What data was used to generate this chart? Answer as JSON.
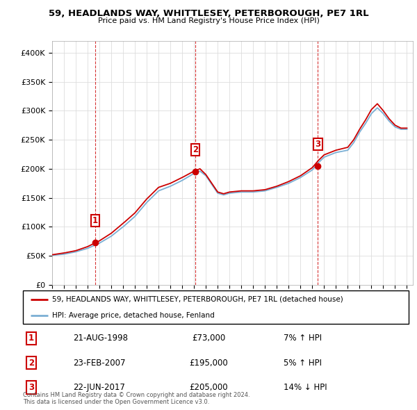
{
  "title_line1": "59, HEADLANDS WAY, WHITTLESEY, PETERBOROUGH, PE7 1RL",
  "title_line2": "Price paid vs. HM Land Registry's House Price Index (HPI)",
  "sale_color": "#cc0000",
  "hpi_color": "#7bafd4",
  "ylim": [
    0,
    420000
  ],
  "yticks": [
    0,
    50000,
    100000,
    150000,
    200000,
    250000,
    300000,
    350000,
    400000
  ],
  "ytick_labels": [
    "£0",
    "£50K",
    "£100K",
    "£150K",
    "£200K",
    "£250K",
    "£300K",
    "£350K",
    "£400K"
  ],
  "xlim": [
    1995.0,
    2025.5
  ],
  "xtick_years": [
    1995,
    1996,
    1997,
    1998,
    1999,
    2000,
    2001,
    2002,
    2003,
    2004,
    2005,
    2006,
    2007,
    2008,
    2009,
    2010,
    2011,
    2012,
    2013,
    2014,
    2015,
    2016,
    2017,
    2018,
    2019,
    2020,
    2021,
    2022,
    2023,
    2024,
    2025
  ],
  "purchase_points": [
    {
      "year": 1998.64,
      "price": 73000,
      "label": "1"
    },
    {
      "year": 2007.12,
      "price": 195000,
      "label": "2"
    },
    {
      "year": 2017.47,
      "price": 205000,
      "label": "3"
    }
  ],
  "vlines": [
    1998.64,
    2007.12,
    2017.47
  ],
  "legend_sale_label": "59, HEADLANDS WAY, WHITTLESEY, PETERBOROUGH, PE7 1RL (detached house)",
  "legend_hpi_label": "HPI: Average price, detached house, Fenland",
  "table_data": [
    {
      "num": "1",
      "date": "21-AUG-1998",
      "price": "£73,000",
      "hpi": "7% ↑ HPI"
    },
    {
      "num": "2",
      "date": "23-FEB-2007",
      "price": "£195,000",
      "hpi": "5% ↑ HPI"
    },
    {
      "num": "3",
      "date": "22-JUN-2017",
      "price": "£205,000",
      "hpi": "14% ↓ HPI"
    }
  ],
  "footnote": "Contains HM Land Registry data © Crown copyright and database right 2024.\nThis data is licensed under the Open Government Licence v3.0.",
  "grid_color": "#dddddd",
  "point_number_color": "#cc0000"
}
